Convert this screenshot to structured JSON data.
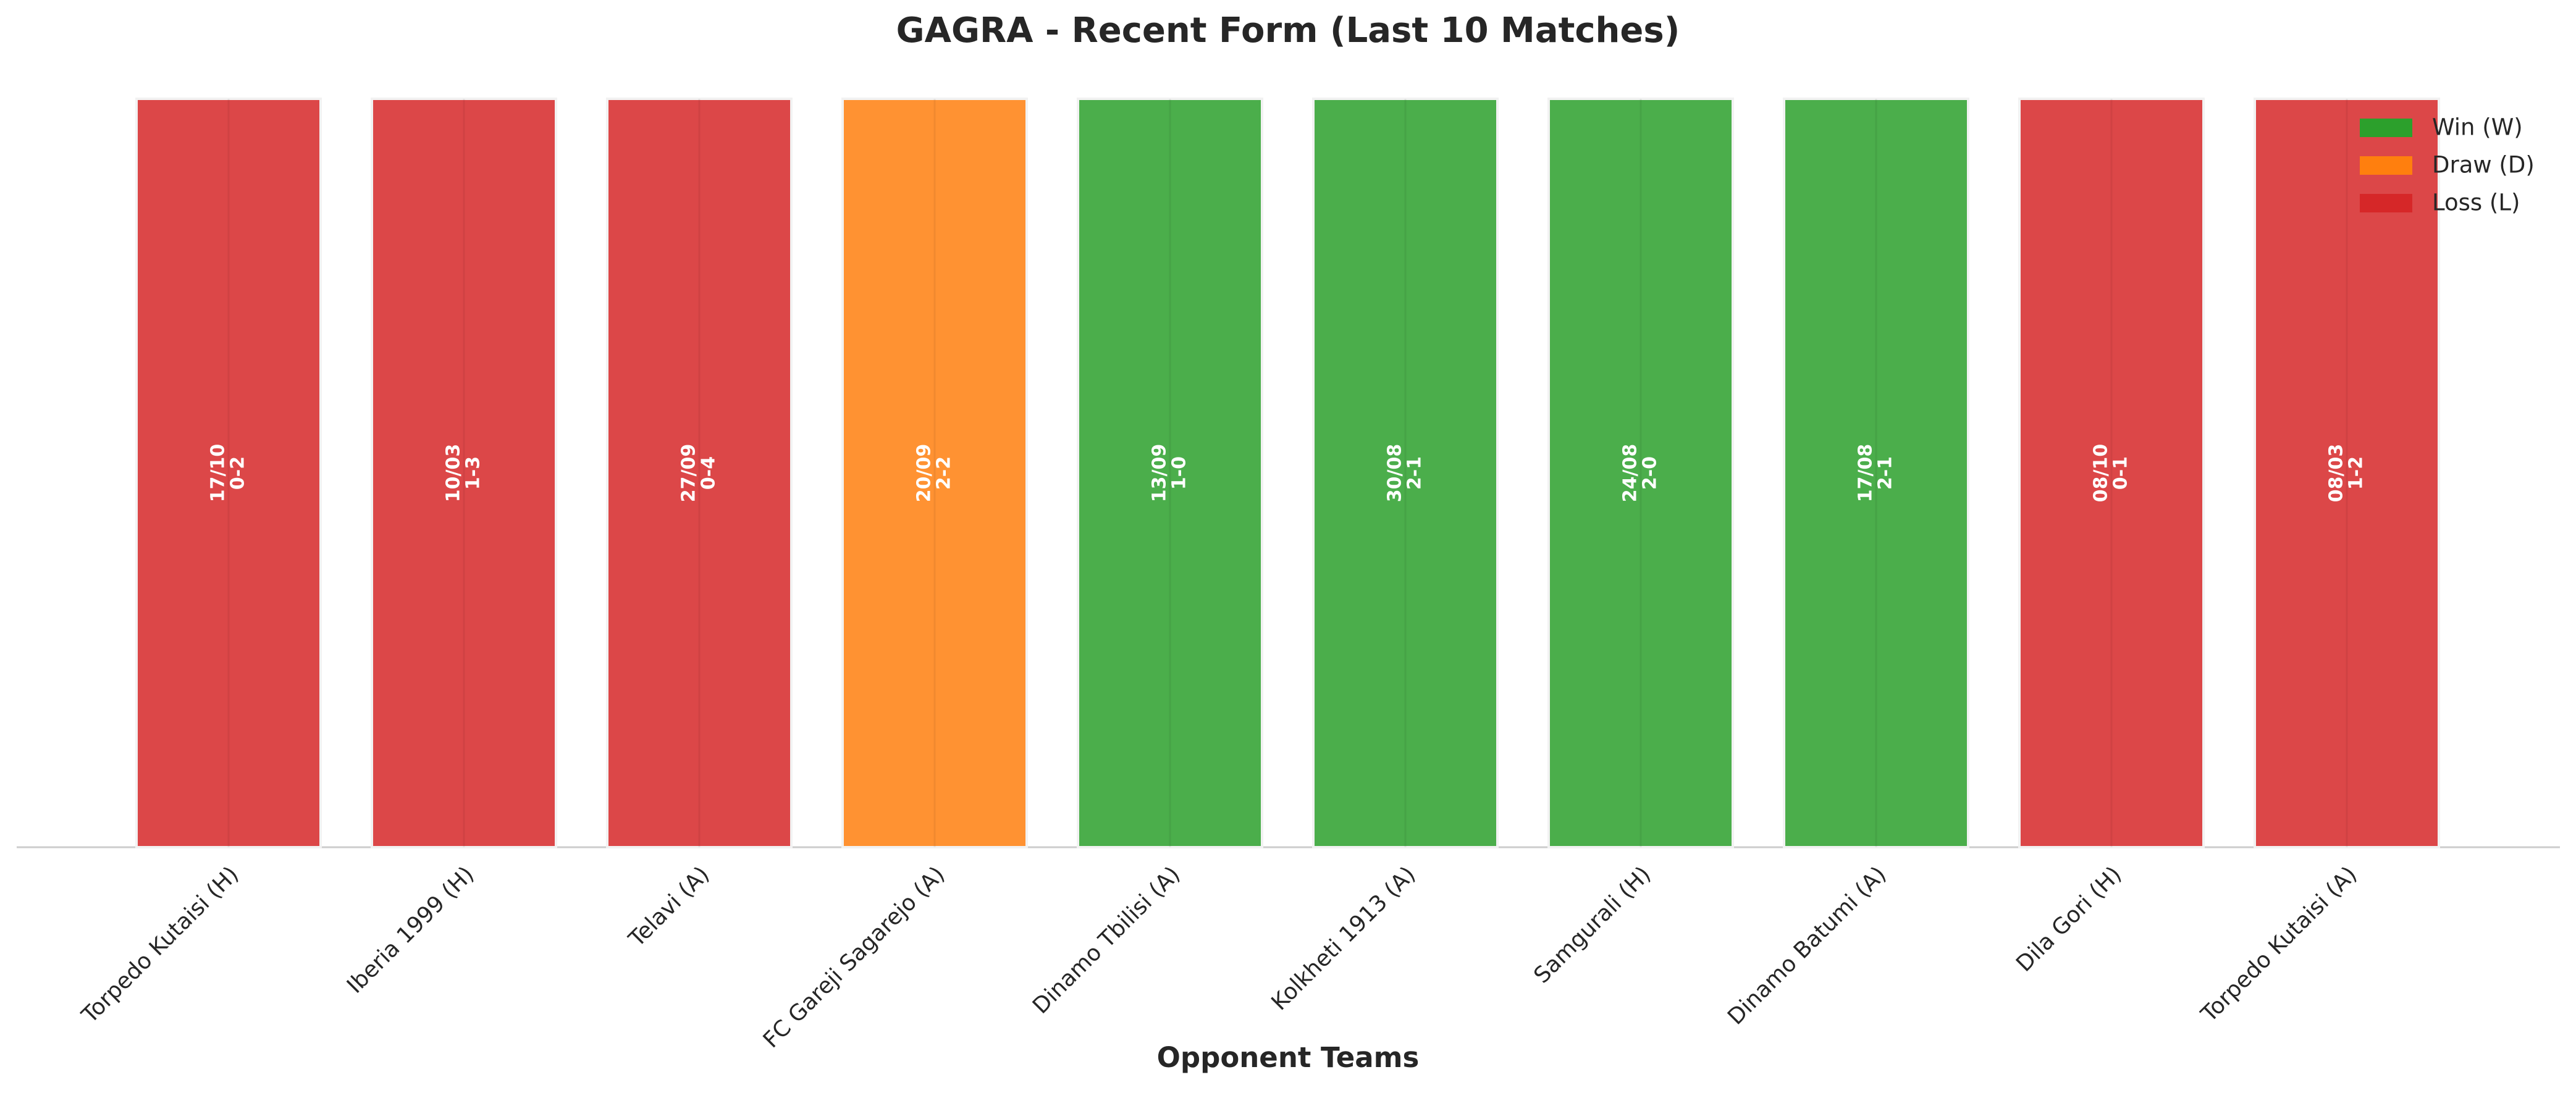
{
  "chart_data": {
    "type": "bar",
    "title": "GAGRA - Recent Form (Last 10 Matches)",
    "xlabel": "Opponent Teams",
    "categories": [
      "Torpedo Kutaisi (H)",
      "Iberia 1999 (H)",
      "Telavi (A)",
      "FC Gareji Sagarejo (A)",
      "Dinamo Tbilisi (A)",
      "Kolkheti 1913 (A)",
      "Samgurali (H)",
      "Dinamo Batumi (A)",
      "Dila Gori (H)",
      "Torpedo Kutaisi (A)"
    ],
    "values": [
      1,
      1,
      1,
      1,
      1,
      1,
      1,
      1,
      1,
      1
    ],
    "dates": [
      "17/10",
      "10/03",
      "27/09",
      "20/09",
      "13/09",
      "30/08",
      "24/08",
      "17/08",
      "08/10",
      "08/03"
    ],
    "scores": [
      "0-2",
      "1-3",
      "0-4",
      "2-2",
      "1-0",
      "2-1",
      "2-0",
      "2-1",
      "0-1",
      "1-2"
    ],
    "colors": [
      "#d62728",
      "#d62728",
      "#d62728",
      "#ff7f0e",
      "#2ca02c",
      "#2ca02c",
      "#2ca02c",
      "#2ca02c",
      "#d62728",
      "#d62728"
    ],
    "ylim": [
      0,
      1
    ],
    "legend_position": "upper right",
    "legend": [
      {
        "name": "Win (W)",
        "color": "#2ca02c"
      },
      {
        "name": "Draw (D)",
        "color": "#ff7f0e"
      },
      {
        "name": "Loss (L)",
        "color": "#d62728"
      }
    ]
  }
}
